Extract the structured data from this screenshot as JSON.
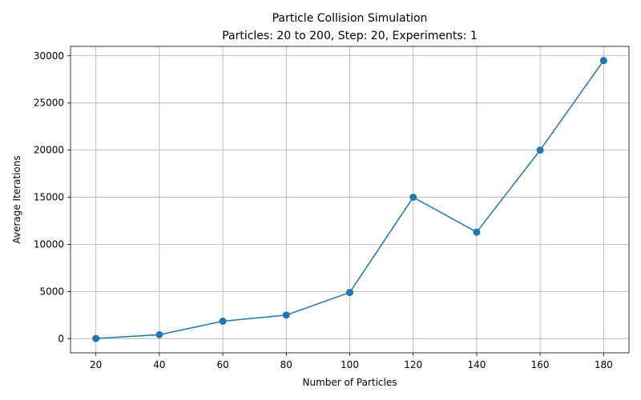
{
  "chart_data": {
    "type": "line",
    "title": "Particle Collision Simulation",
    "subtitle": "Particles: 20 to 200, Step: 20, Experiments: 1",
    "xlabel": "Number of Particles",
    "ylabel": "Average Iterations",
    "xlim": [
      12,
      188
    ],
    "ylim": [
      -1500,
      31000
    ],
    "x_ticks": [
      20,
      40,
      60,
      80,
      100,
      120,
      140,
      160,
      180
    ],
    "y_ticks": [
      0,
      5000,
      10000,
      15000,
      20000,
      25000,
      30000
    ],
    "grid": true,
    "series": [
      {
        "x": [
          20,
          40,
          60,
          80,
          100,
          120,
          140,
          160,
          180
        ],
        "values": [
          20,
          420,
          1850,
          2500,
          4900,
          15000,
          11300,
          20000,
          29500
        ],
        "color": "#1f77b4"
      }
    ]
  }
}
